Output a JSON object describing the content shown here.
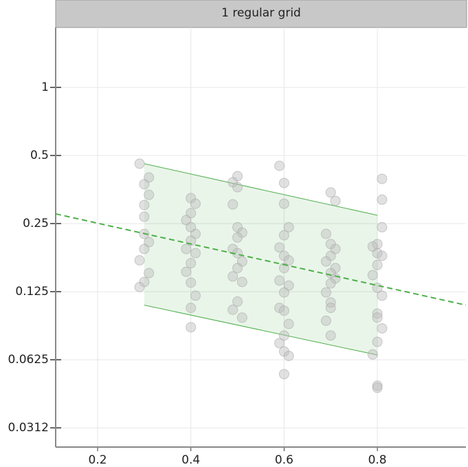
{
  "chart_data": {
    "type": "scatter",
    "title": "1 regular grid",
    "xlim": [
      0.11,
      0.99
    ],
    "ylim": [
      0.0257,
      1.84
    ],
    "log_y": true,
    "log_base": 2,
    "grid": true,
    "xticks": [
      0.2,
      0.4,
      0.6,
      0.8
    ],
    "yticks": [
      1,
      0.5,
      0.25,
      0.125,
      0.0625,
      {
        "value": 0.03125,
        "label": "0.0312"
      }
    ],
    "band": {
      "x": [
        0.3,
        0.8
      ],
      "upper": [
        0.46,
        0.272
      ],
      "lower": [
        0.109,
        0.0656
      ],
      "color": "#4daf4a"
    },
    "trend": {
      "x": [
        0.11,
        0.99
      ],
      "values": [
        0.276,
        0.109
      ],
      "color": "#4daf4a"
    },
    "points": {
      "color": "#bdbdbd",
      "x": [
        0.29,
        0.31,
        0.3,
        0.31,
        0.3,
        0.3,
        0.3,
        0.31,
        0.3,
        0.29,
        0.31,
        0.3,
        0.29,
        0.4,
        0.41,
        0.4,
        0.39,
        0.4,
        0.41,
        0.4,
        0.39,
        0.41,
        0.4,
        0.39,
        0.4,
        0.41,
        0.4,
        0.4,
        0.5,
        0.49,
        0.5,
        0.49,
        0.5,
        0.51,
        0.5,
        0.49,
        0.5,
        0.51,
        0.5,
        0.49,
        0.51,
        0.5,
        0.49,
        0.51,
        0.59,
        0.6,
        0.6,
        0.61,
        0.6,
        0.59,
        0.6,
        0.61,
        0.6,
        0.59,
        0.61,
        0.6,
        0.59,
        0.6,
        0.61,
        0.6,
        0.59,
        0.6,
        0.61,
        0.6,
        0.7,
        0.71,
        0.69,
        0.7,
        0.71,
        0.7,
        0.69,
        0.71,
        0.7,
        0.71,
        0.7,
        0.69,
        0.7,
        0.7,
        0.69,
        0.7,
        0.81,
        0.81,
        0.81,
        0.8,
        0.79,
        0.8,
        0.81,
        0.8,
        0.79,
        0.8,
        0.81,
        0.8,
        0.8,
        0.81,
        0.8,
        0.79,
        0.8,
        0.8
      ],
      "values": [
        0.46,
        0.4,
        0.373,
        0.335,
        0.302,
        0.268,
        0.225,
        0.207,
        0.193,
        0.172,
        0.151,
        0.138,
        0.131,
        0.324,
        0.306,
        0.278,
        0.259,
        0.241,
        0.225,
        0.21,
        0.193,
        0.185,
        0.167,
        0.153,
        0.137,
        0.12,
        0.106,
        0.087,
        0.405,
        0.381,
        0.362,
        0.304,
        0.241,
        0.228,
        0.217,
        0.193,
        0.185,
        0.17,
        0.159,
        0.146,
        0.138,
        0.113,
        0.104,
        0.096,
        0.45,
        0.378,
        0.306,
        0.241,
        0.222,
        0.196,
        0.18,
        0.172,
        0.159,
        0.14,
        0.133,
        0.124,
        0.106,
        0.103,
        0.09,
        0.08,
        0.074,
        0.068,
        0.065,
        0.054,
        0.343,
        0.315,
        0.225,
        0.203,
        0.193,
        0.18,
        0.17,
        0.159,
        0.151,
        0.143,
        0.136,
        0.124,
        0.112,
        0.106,
        0.093,
        0.08,
        0.394,
        0.319,
        0.241,
        0.203,
        0.198,
        0.185,
        0.18,
        0.164,
        0.148,
        0.13,
        0.12,
        0.1,
        0.096,
        0.086,
        0.075,
        0.066,
        0.048,
        0.047
      ]
    }
  }
}
